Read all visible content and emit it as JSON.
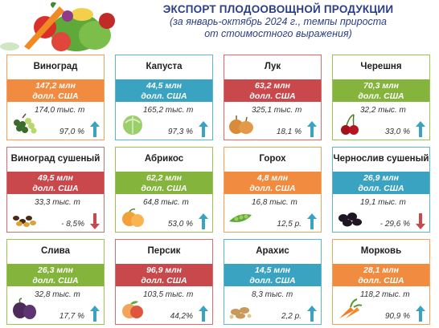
{
  "header": {
    "title": "ЭКСПОРТ ПЛОДООВОЩНОЙ ПРОДУКЦИИ",
    "subtitle_line1": "(за январь-октябрь 2024 г., темпы прироста",
    "subtitle_line2": "от стоимостного выражения)"
  },
  "colors": {
    "orange": "#f08b3f",
    "teal": "#3aa3c1",
    "red": "#c9484b",
    "green": "#84b43b",
    "title": "#2c3e87",
    "arrow_up": "#3aa3c1",
    "arrow_down": "#c9484b"
  },
  "cards": [
    {
      "name": "Виноград",
      "value": "147,2 млн",
      "unit": "долл. США",
      "qty": "174,0 тыс. т",
      "pct": "97,0 %",
      "trend": "up",
      "icon": "grapes-icon"
    },
    {
      "name": "Капуста",
      "value": "44,5 млн",
      "unit": "долл. США",
      "qty": "165,2 тыс. т",
      "pct": "97,3 %",
      "trend": "up",
      "icon": "cabbage-icon"
    },
    {
      "name": "Лук",
      "value": "63,2 млн",
      "unit": "долл. США",
      "qty": "325,1 тыс. т",
      "pct": "18,1 %",
      "trend": "up",
      "icon": "onion-icon"
    },
    {
      "name": "Черешня",
      "value": "70,3 млн",
      "unit": "долл. США",
      "qty": "32,2 тыс. т",
      "pct": "33,0 %",
      "trend": "up",
      "icon": "cherry-icon"
    },
    {
      "name": "Виноград сушеный",
      "value": "49,5 млн",
      "unit": "долл. США",
      "qty": "33,3 тыс. т",
      "pct": "- 8,5%",
      "trend": "down",
      "icon": "raisins-icon"
    },
    {
      "name": "Абрикос",
      "value": "62,2 млн",
      "unit": "долл. США",
      "qty": "64,8 тыс. т",
      "pct": "53,0 %",
      "trend": "up",
      "icon": "apricot-icon"
    },
    {
      "name": "Горох",
      "value": "4,8 млн",
      "unit": "долл. США",
      "qty": "16,8 тыс. т",
      "pct": "12,5 р.",
      "trend": "up",
      "icon": "peas-icon"
    },
    {
      "name": "Чернослив сушеный",
      "value": "26,9 млн",
      "unit": "долл. США",
      "qty": "19,1 тыс. т",
      "pct": "- 29,6 %",
      "trend": "down",
      "icon": "prunes-icon"
    },
    {
      "name": "Слива",
      "value": "26,3 млн",
      "unit": "долл. США",
      "qty": "32,8 тыс. т",
      "pct": "17,7 %",
      "trend": "up",
      "icon": "plum-icon"
    },
    {
      "name": "Персик",
      "value": "96,9 млн",
      "unit": "долл. США",
      "qty": "103,5 тыс. т",
      "pct": "44,2%",
      "trend": "up",
      "icon": "peach-icon"
    },
    {
      "name": "Арахис",
      "value": "14,5 млн",
      "unit": "долл. США",
      "qty": "8,3 тыс. т",
      "pct": "2,2 р.",
      "trend": "up",
      "icon": "peanut-icon"
    },
    {
      "name": "Морковь",
      "value": "28,1 млн",
      "unit": "долл. США",
      "qty": "118,2 тыс. т",
      "pct": "90,9 %",
      "trend": "up",
      "icon": "carrot-icon"
    }
  ]
}
